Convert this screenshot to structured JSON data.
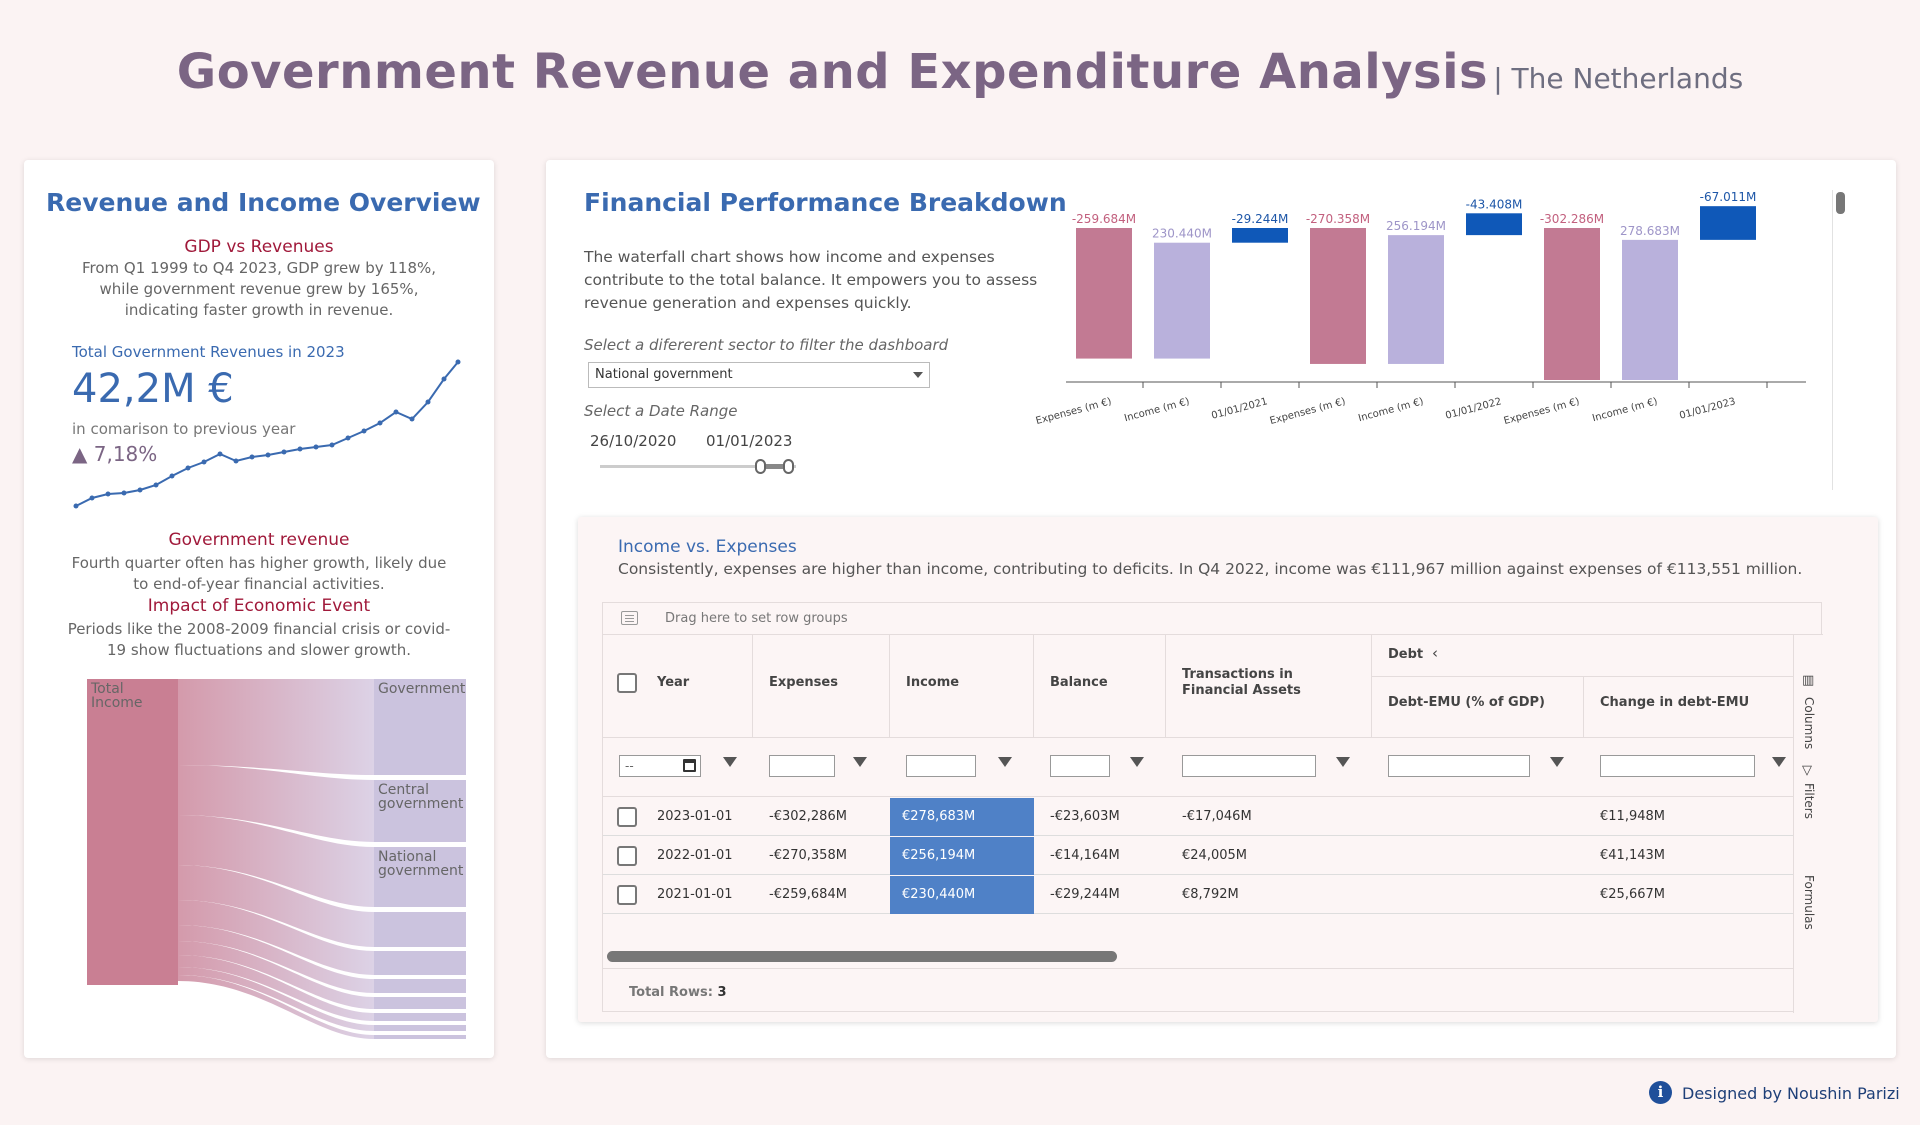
{
  "page": {
    "title": "Government Revenue and Expenditure Analysis",
    "subtitle": "| The Netherlands"
  },
  "left": {
    "title": "Revenue and Income Overview",
    "gdp_head": "GDP vs Revenues",
    "gdp_text": "From Q1 1999 to Q4 2023, GDP grew by 118%, while government revenue grew by 165%, indicating faster growth in revenue.",
    "kpi_label": "Total Government Revenues in 2023",
    "kpi_value": "42,2M €",
    "kpi_compare": "in comarison to previous year",
    "kpi_change": "▲ 7,18%",
    "rev_head": "Government revenue",
    "rev_text": "Fourth quarter often has higher growth, likely due to end-of-year financial activities.",
    "eco_head": "Impact of Economic Event",
    "eco_text": "Periods like the 2008-2009 financial crisis or covid-19 show fluctuations and slower growth.",
    "sankey_source": "Total Income",
    "sankey_targets": [
      "Government",
      "Central government",
      "National government"
    ]
  },
  "right": {
    "title": "Financial Performance Breakdown",
    "description": "The waterfall chart shows how income and expenses contribute to the total balance. It empowers you to assess revenue generation and expenses quickly.",
    "sector_label": "Select a difererent  sector to filter the dashboard",
    "sector_value": "National government",
    "date_label": "Select a Date Range",
    "date_start": "26/10/2020",
    "date_end": "01/01/2023"
  },
  "chart_data": {
    "type": "bar",
    "categories": [
      "Expenses (m €)",
      "Income (m €)",
      "01/01/2021",
      "Expenses (m €)",
      "Income (m €)",
      "01/01/2022",
      "Expenses (m €)",
      "Income (m €)",
      "01/01/2023"
    ],
    "values": [
      -259.684,
      230.44,
      -29.244,
      -270.358,
      256.194,
      -43.408,
      -302.286,
      278.683,
      -67.011
    ],
    "labels": [
      "-259.684M",
      "230.440M",
      "-29.244M",
      "-270.358M",
      "256.194M",
      "-43.408M",
      "-302.286M",
      "278.683M",
      "-67.011M"
    ],
    "colors": {
      "expenses": "#c27a93",
      "income": "#b9b1dc",
      "total": "#0f58b8"
    }
  },
  "table": {
    "title": "Income vs. Expenses",
    "description": "Consistently, expenses are higher than income, contributing to deficits. In Q4 2022, income was €111,967 million against expenses of €113,551 million.",
    "drag_text": "Drag here to set row groups",
    "debt_group": "Debt",
    "headers": {
      "year": "Year",
      "expenses": "Expenses",
      "income": "Income",
      "balance": "Balance",
      "transactions": "Transactions in Financial Assets",
      "debt_emu": "Debt-EMU (% of GDP)",
      "change_debt": "Change in debt-EMU"
    },
    "date_placeholder": "--",
    "rows": [
      {
        "year": "2023-01-01",
        "expenses": "-€302,286M",
        "income": "€278,683M",
        "balance": "-€23,603M",
        "transactions": "-€17,046M",
        "change_debt": "€11,948M"
      },
      {
        "year": "2022-01-01",
        "expenses": "-€270,358M",
        "income": "€256,194M",
        "balance": "-€14,164M",
        "transactions": "€24,005M",
        "change_debt": "€41,143M"
      },
      {
        "year": "2021-01-01",
        "expenses": "-€259,684M",
        "income": "€230,440M",
        "balance": "-€29,244M",
        "transactions": "€8,792M",
        "change_debt": "€25,667M"
      }
    ],
    "side_tabs": [
      "Columns",
      "Filters",
      "Formulas"
    ],
    "footer_label": "Total Rows:",
    "footer_count": "3"
  },
  "credit": {
    "icon": "i",
    "text": "Designed by Noushin Parizi"
  }
}
